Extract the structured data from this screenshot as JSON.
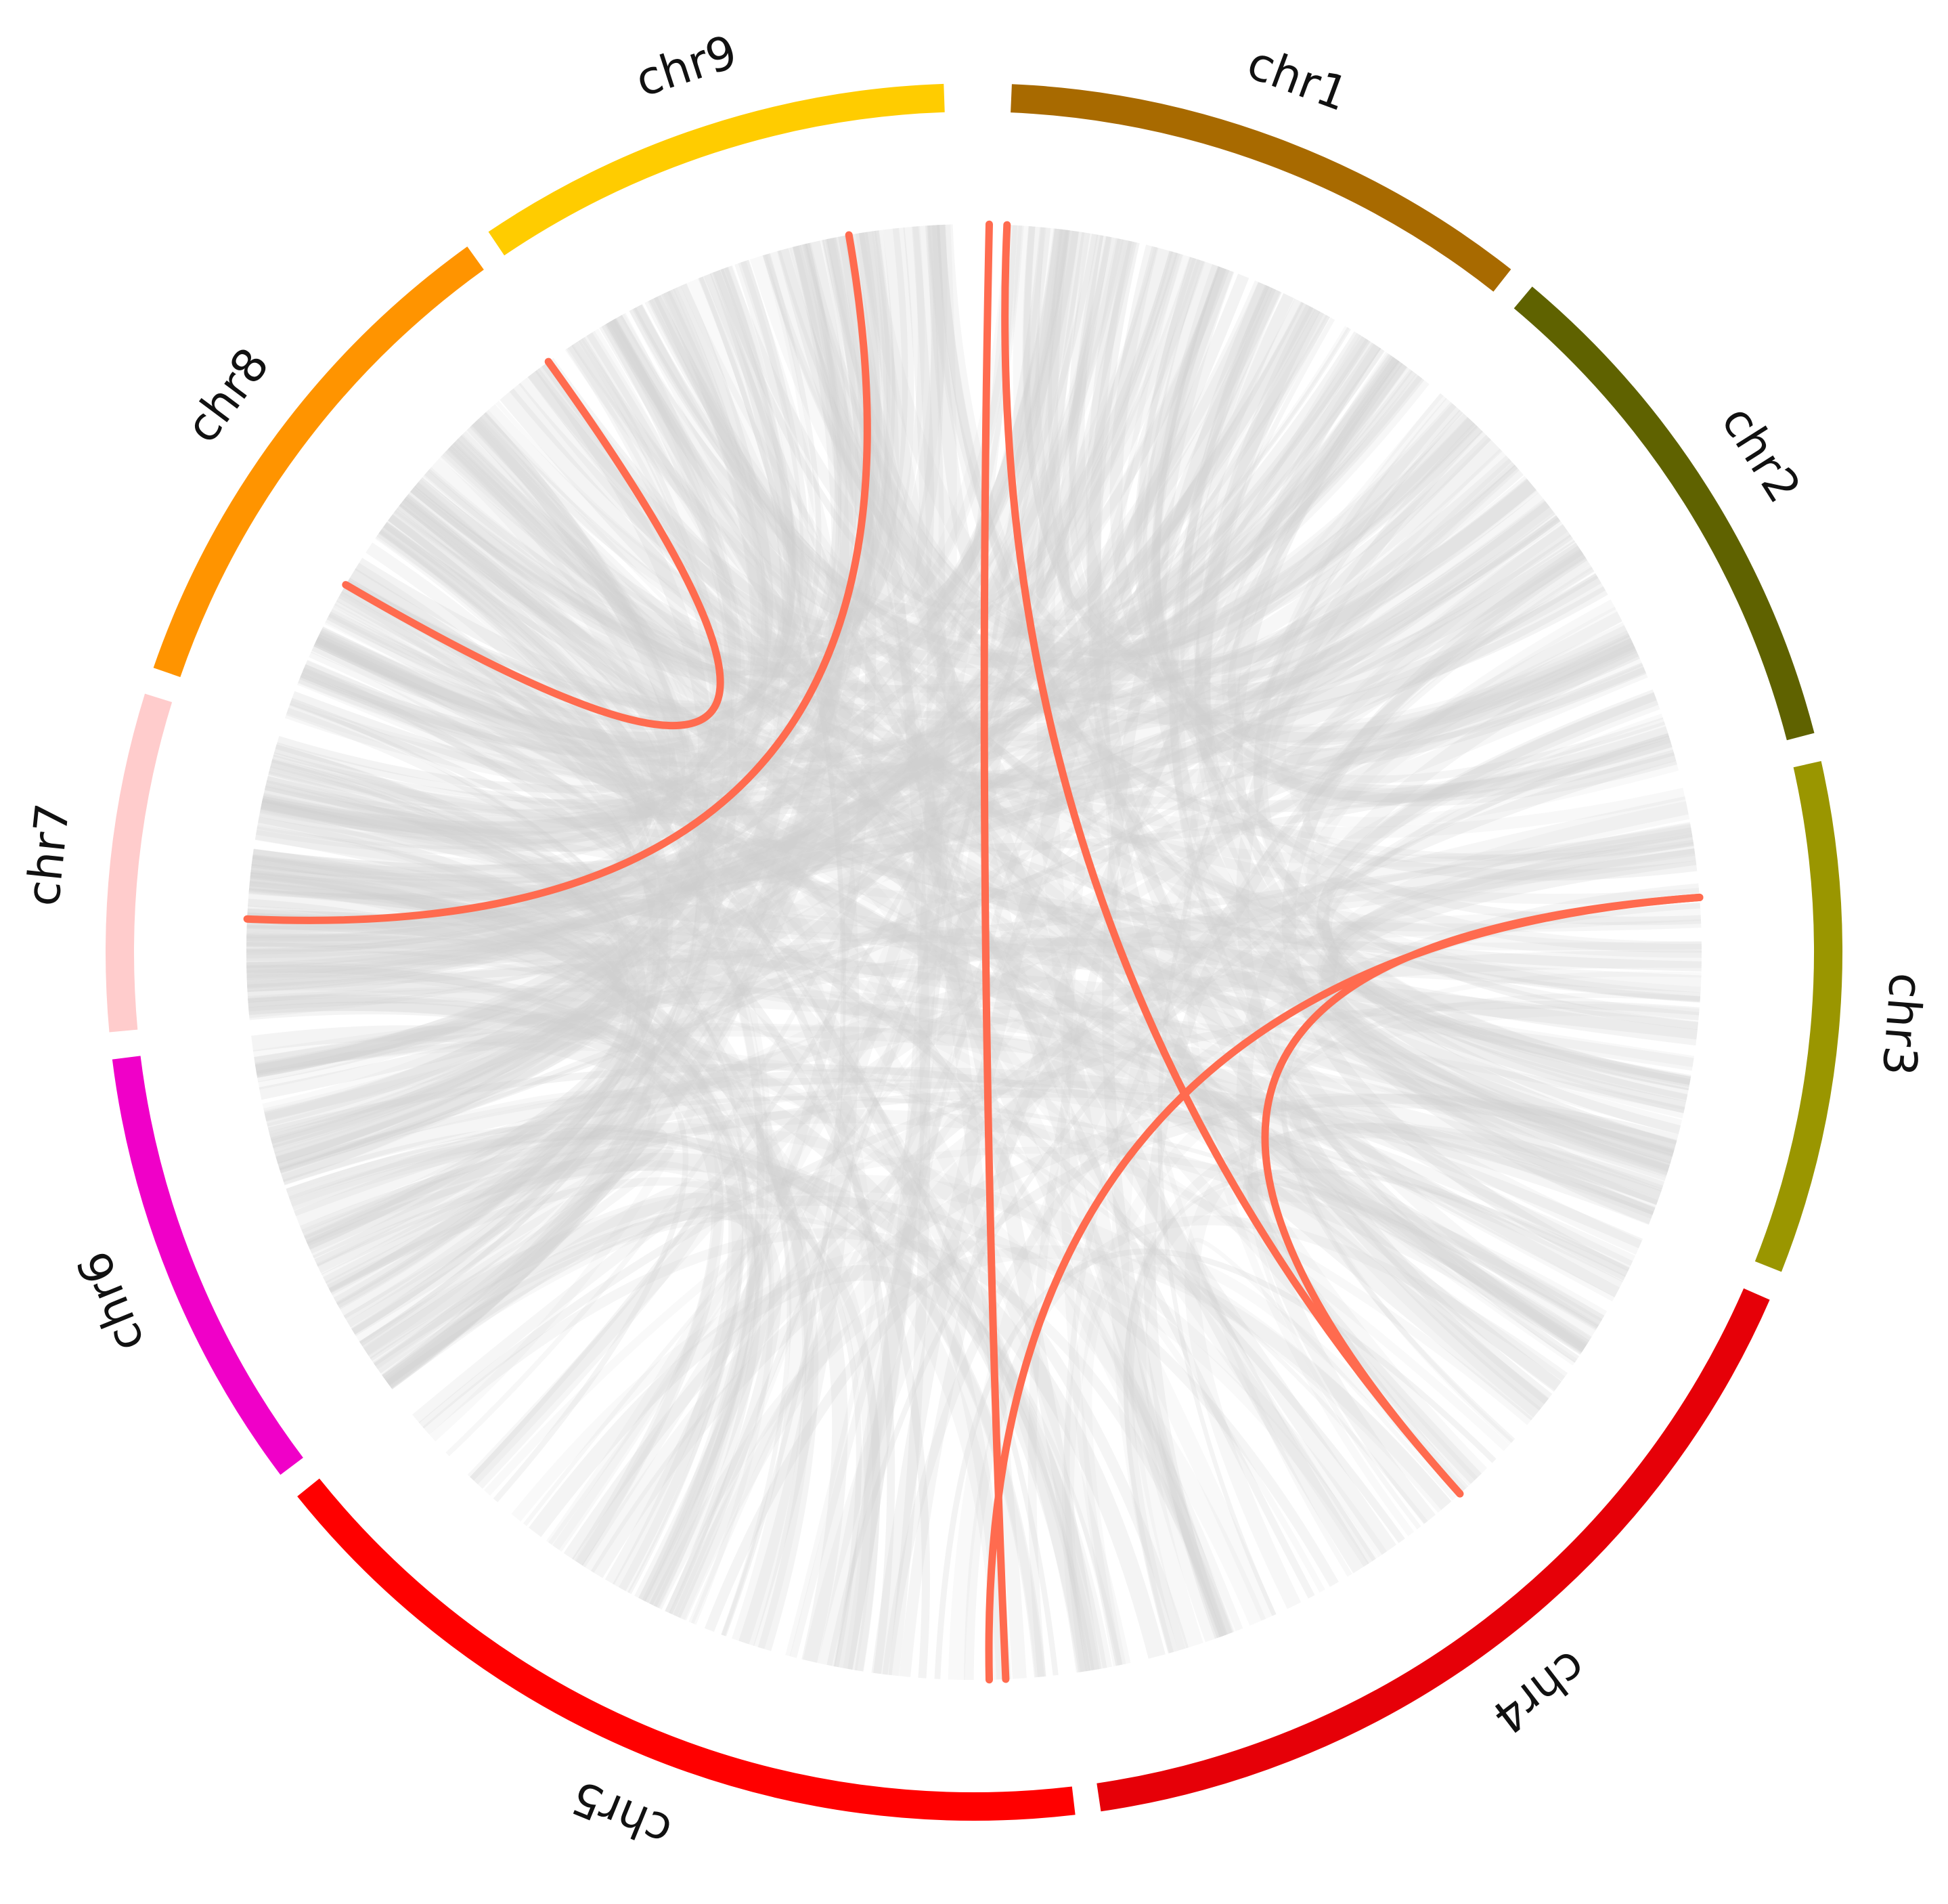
{
  "chart_data": {
    "type": "chord",
    "chromosomes": [
      {
        "id": "chr1",
        "label": "chr1",
        "color": "#A86A00",
        "start_deg": 2.5,
        "end_deg": 38.2
      },
      {
        "id": "chr2",
        "label": "chr2",
        "color": "#5F6200",
        "start_deg": 40.0,
        "end_deg": 75.4
      },
      {
        "id": "chr3",
        "label": "chr3",
        "color": "#9A9600",
        "start_deg": 77.3,
        "end_deg": 111.6
      },
      {
        "id": "chr4",
        "label": "chr4",
        "color": "#E60008",
        "start_deg": 113.6,
        "end_deg": 171.6
      },
      {
        "id": "chr5",
        "label": "chr5",
        "color": "#FF0000",
        "start_deg": 173.3,
        "end_deg": 231.2
      },
      {
        "id": "chr6",
        "label": "chr6",
        "color": "#F000C8",
        "start_deg": 233.0,
        "end_deg": 262.9
      },
      {
        "id": "chr7",
        "label": "chr7",
        "color": "#FFCCCC",
        "start_deg": 264.7,
        "end_deg": 287.3
      },
      {
        "id": "chr8",
        "label": "chr8",
        "color": "#FF9400",
        "start_deg": 289.1,
        "end_deg": 324.3
      },
      {
        "id": "chr9",
        "label": "chr9",
        "color": "#FFCC00",
        "start_deg": 326.0,
        "end_deg": 358.0
      }
    ],
    "background_link_color": "#d9d9d9",
    "highlight_link_color": "#FF6B4F",
    "highlighted_links": [
      {
        "from_deg": 300.3,
        "to_deg": 324.2
      },
      {
        "from_deg": 272.6,
        "to_deg": 350.1
      },
      {
        "from_deg": 1.2,
        "to_deg": 177.5
      },
      {
        "from_deg": 85.7,
        "to_deg": 178.8
      },
      {
        "from_deg": 85.7,
        "to_deg": 138.1
      },
      {
        "from_deg": 2.6,
        "to_deg": 138.1
      }
    ],
    "background_link_count": 420
  }
}
